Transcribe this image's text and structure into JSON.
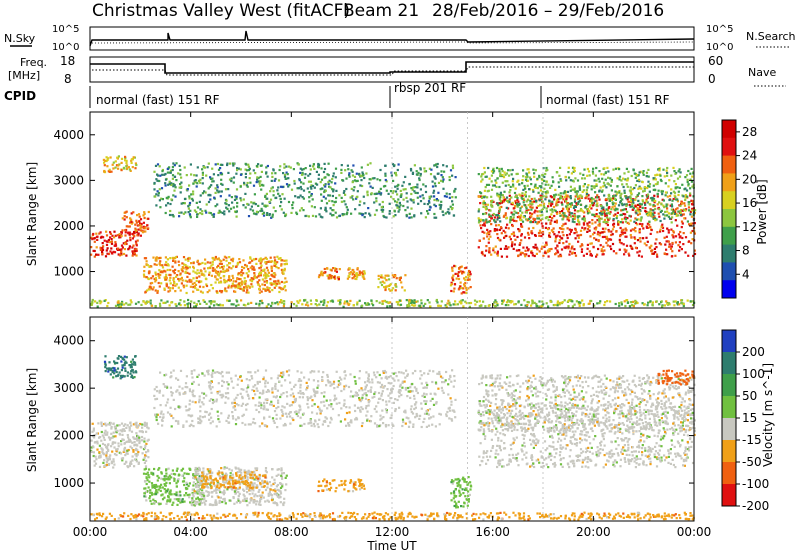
{
  "header": {
    "station": "Christmas Valley West (fitACF)",
    "beam": "Beam 21",
    "date_range": "28/Feb/2016 – 29/Feb/2016"
  },
  "noise_panel": {
    "left_label": "N.Sky",
    "left_ticks": [
      "10^5",
      "10^0"
    ],
    "right_label": "N.Search",
    "right_ticks": [
      "10^5",
      "10^0"
    ]
  },
  "freq_panel": {
    "left_label_1": "Freq.",
    "left_label_2": "[MHz]",
    "left_ticks": [
      "18",
      "8"
    ],
    "right_label": "Nave",
    "right_ticks": [
      "60",
      "0"
    ]
  },
  "cpid": {
    "label": "CPID",
    "segments": [
      {
        "label": "normal (fast) 151 RF",
        "start_hour": 0,
        "end_hour": 12
      },
      {
        "label": "rbsp 201 RF",
        "start_hour": 12,
        "end_hour": 18
      },
      {
        "label": "normal (fast) 151 RF",
        "start_hour": 18,
        "end_hour": 24
      }
    ]
  },
  "chart_data": [
    {
      "type": "heatmap",
      "name": "power-panel",
      "ylabel": "Slant Range [km]",
      "yticks": [
        "1000",
        "2000",
        "3000",
        "4000"
      ],
      "ylim": [
        200,
        4500
      ],
      "xlim": [
        0,
        24
      ],
      "colorbar": {
        "label": "Power [dB]",
        "ticks": [
          "4",
          "8",
          "12",
          "16",
          "20",
          "24",
          "28"
        ],
        "range": [
          0,
          30
        ],
        "colors": [
          "#0000ee",
          "#1f4fb0",
          "#2e7d6e",
          "#3f9f4a",
          "#8cc63f",
          "#d8d020",
          "#f0a018",
          "#f06010",
          "#e01010",
          "#d00000"
        ]
      },
      "scatter_regions": [
        {
          "t0": 0.0,
          "t1": 1.9,
          "r0": 1350,
          "r1": 1900,
          "level": 26
        },
        {
          "t0": 1.2,
          "t1": 2.3,
          "r0": 1800,
          "r1": 2350,
          "level": 24
        },
        {
          "t0": 0.5,
          "t1": 1.8,
          "r0": 3200,
          "r1": 3550,
          "level": 18
        },
        {
          "t0": 2.1,
          "t1": 7.8,
          "r0": 550,
          "r1": 1350,
          "level": 20
        },
        {
          "t0": 9.0,
          "t1": 9.9,
          "r0": 850,
          "r1": 1100,
          "level": 21
        },
        {
          "t0": 10.2,
          "t1": 10.9,
          "r0": 850,
          "r1": 1100,
          "level": 20
        },
        {
          "t0": 11.4,
          "t1": 12.5,
          "r0": 600,
          "r1": 950,
          "level": 18
        },
        {
          "t0": 14.3,
          "t1": 15.1,
          "r0": 500,
          "r1": 1150,
          "level": 22
        },
        {
          "t0": 15.4,
          "t1": 24.0,
          "r0": 1350,
          "r1": 2700,
          "level": 25
        },
        {
          "t0": 15.4,
          "t1": 24.0,
          "r0": 2100,
          "r1": 3300,
          "level": 12
        },
        {
          "t0": 2.5,
          "t1": 14.5,
          "r0": 2200,
          "r1": 3400,
          "level": 9
        },
        {
          "t0": 0.0,
          "t1": 24.0,
          "r0": 250,
          "r1": 400,
          "level": 14
        }
      ]
    },
    {
      "type": "heatmap",
      "name": "velocity-panel",
      "xlabel": "Time UT",
      "ylabel": "Slant Range [km]",
      "yticks": [
        "1000",
        "2000",
        "3000",
        "4000"
      ],
      "xticks": [
        "00:00",
        "04:00",
        "08:00",
        "12:00",
        "16:00",
        "20:00",
        "00:00"
      ],
      "ylim": [
        200,
        4500
      ],
      "xlim": [
        0,
        24
      ],
      "colorbar": {
        "label": "Velocity [m s^-1]",
        "ticks": [
          "200",
          "100",
          "50",
          "15",
          "-15",
          "-50",
          "-100",
          "-200"
        ],
        "colors": [
          "#2040c0",
          "#2e7d6e",
          "#3f9f4a",
          "#70c040",
          "#c8c8c0",
          "#f0a018",
          "#f06010",
          "#e01010"
        ]
      },
      "scatter_regions": [
        {
          "t0": 0.0,
          "t1": 2.3,
          "r0": 1350,
          "r1": 2300,
          "cls": 4
        },
        {
          "t0": 0.5,
          "t1": 1.8,
          "r0": 3200,
          "r1": 3700,
          "cls": 1
        },
        {
          "t0": 2.1,
          "t1": 4.5,
          "r0": 550,
          "r1": 1350,
          "cls": 3
        },
        {
          "t0": 4.0,
          "t1": 7.8,
          "r0": 550,
          "r1": 1350,
          "cls": 4
        },
        {
          "t0": 4.3,
          "t1": 7.0,
          "r0": 900,
          "r1": 1250,
          "cls": 5
        },
        {
          "t0": 9.0,
          "t1": 10.9,
          "r0": 850,
          "r1": 1100,
          "cls": 5
        },
        {
          "t0": 14.3,
          "t1": 15.1,
          "r0": 500,
          "r1": 1150,
          "cls": 3
        },
        {
          "t0": 15.4,
          "t1": 24.0,
          "r0": 1350,
          "r1": 2700,
          "cls": 4
        },
        {
          "t0": 15.4,
          "t1": 24.0,
          "r0": 2100,
          "r1": 3300,
          "cls": 4
        },
        {
          "t0": 2.5,
          "t1": 14.5,
          "r0": 2200,
          "r1": 3400,
          "cls": 4
        },
        {
          "t0": 22.5,
          "t1": 24.0,
          "r0": 3100,
          "r1": 3400,
          "cls": 6
        },
        {
          "t0": 0.0,
          "t1": 24.0,
          "r0": 250,
          "r1": 400,
          "cls": 5
        }
      ]
    }
  ]
}
